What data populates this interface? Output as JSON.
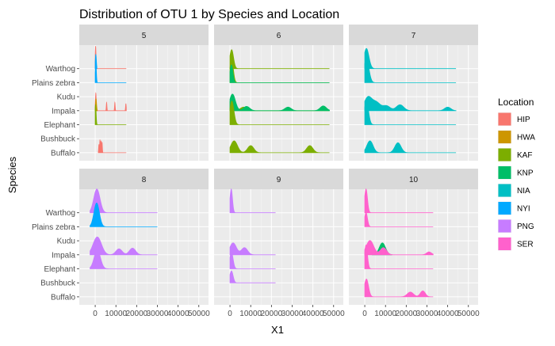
{
  "chart_data": {
    "type": "ridgeline",
    "title": "Distribution of OTU 1 by Species and Location",
    "xlabel": "X1",
    "ylabel": "Species",
    "facet_by": "OTU",
    "facets": [
      "5",
      "6",
      "7",
      "8",
      "9",
      "10"
    ],
    "species": [
      "Buffalo",
      "Bushbuck",
      "Elephant",
      "Impala",
      "Kudu",
      "Plains zebra",
      "Warthog"
    ],
    "x_ticks": [
      0,
      10000,
      20000,
      30000,
      40000,
      50000
    ],
    "x_tick_labels": [
      "0",
      "10000",
      "20000",
      "30000",
      "40000",
      "50000"
    ],
    "xlim": [
      -5000,
      52000
    ],
    "legend": {
      "title": "Location",
      "position": "right",
      "entries": [
        {
          "name": "HIP",
          "color": "#F8766D"
        },
        {
          "name": "HWA",
          "color": "#CD9600"
        },
        {
          "name": "KAF",
          "color": "#7CAE00"
        },
        {
          "name": "KNP",
          "color": "#00BE67"
        },
        {
          "name": "NIA",
          "color": "#00BFC4"
        },
        {
          "name": "NYI",
          "color": "#00A9FF"
        },
        {
          "name": "PNG",
          "color": "#C77CFF"
        },
        {
          "name": "SER",
          "color": "#FF61CC"
        }
      ]
    },
    "panels": [
      {
        "facet": "5",
        "ridges": [
          {
            "species": "Warthog",
            "location": "HIP",
            "range": [
              0,
              15000
            ],
            "peaks": [
              [
                200,
                0.95,
                200
              ]
            ]
          },
          {
            "species": "Warthog",
            "location": "NYI",
            "range": [
              0,
              800
            ],
            "peaks": [
              [
                300,
                0.6,
                250
              ]
            ]
          },
          {
            "species": "Plains zebra",
            "location": "NYI",
            "range": [
              0,
              15000
            ],
            "peaks": [
              [
                300,
                0.85,
                250
              ]
            ]
          },
          {
            "species": "Impala",
            "location": "HIP",
            "range": [
              0,
              15000
            ],
            "peaks": [
              [
                300,
                0.75,
                200
              ],
              [
                5500,
                0.35,
                150
              ],
              [
                9500,
                0.35,
                150
              ],
              [
                14800,
                0.3,
                150
              ]
            ]
          },
          {
            "species": "Impala",
            "location": "HWA",
            "range": [
              0,
              1000
            ],
            "peaks": [
              [
                400,
                0.5,
                250
              ]
            ]
          },
          {
            "species": "Elephant",
            "location": "KAF",
            "range": [
              0,
              15000
            ],
            "peaks": [
              [
                200,
                0.85,
                250
              ]
            ]
          },
          {
            "species": "Buffalo",
            "location": "HIP",
            "range": [
              1500,
              15000
            ],
            "peaks": [
              [
                1800,
                0.35,
                150
              ],
              [
                2300,
                0.55,
                150
              ],
              [
                2800,
                0.5,
                150
              ],
              [
                3300,
                0.45,
                150
              ]
            ]
          }
        ]
      },
      {
        "facet": "6",
        "ridges": [
          {
            "species": "Plains zebra",
            "location": "KAF",
            "range": [
              0,
              48000
            ],
            "peaks": [
              [
                800,
                1.0,
                800
              ]
            ]
          },
          {
            "species": "Warthog",
            "location": "KAF",
            "range": [
              0,
              48000
            ],
            "peaks": [
              [
                800,
                0.8,
                900
              ]
            ]
          },
          {
            "species": "Plains zebra",
            "location": "KNP",
            "range": [
              0,
              48000
            ],
            "peaks": [
              [
                700,
                0.75,
                700
              ]
            ]
          },
          {
            "species": "Impala",
            "location": "KAF",
            "range": [
              0,
              48000
            ],
            "peaks": [
              [
                1000,
                0.55,
                1200
              ],
              [
                6500,
                0.15,
                1500
              ]
            ]
          },
          {
            "species": "Impala",
            "location": "KNP",
            "range": [
              0,
              48000
            ],
            "peaks": [
              [
                1200,
                0.7,
                1400
              ],
              [
                8000,
                0.18,
                1500
              ],
              [
                28000,
                0.15,
                1500
              ],
              [
                45000,
                0.2,
                1500
              ]
            ]
          },
          {
            "species": "Elephant",
            "location": "KAF",
            "range": [
              0,
              48000
            ],
            "peaks": [
              [
                900,
                1.0,
                1000
              ]
            ]
          },
          {
            "species": "Buffalo",
            "location": "KAF",
            "range": [
              0,
              48000
            ],
            "peaks": [
              [
                2000,
                0.5,
                1600
              ],
              [
                10000,
                0.3,
                1500
              ],
              [
                38500,
                0.3,
                1500
              ]
            ]
          }
        ]
      },
      {
        "facet": "7",
        "ridges": [
          {
            "species": "Plains zebra",
            "location": "NIA",
            "range": [
              0,
              44000
            ],
            "peaks": [
              [
                800,
                1.0,
                1200
              ]
            ]
          },
          {
            "species": "Warthog",
            "location": "NIA",
            "range": [
              0,
              44000
            ],
            "peaks": [
              [
                800,
                0.85,
                1200
              ]
            ]
          },
          {
            "species": "Impala",
            "location": "NIA",
            "range": [
              0,
              44000
            ],
            "peaks": [
              [
                1500,
                0.55,
                1800
              ],
              [
                5500,
                0.35,
                2000
              ],
              [
                10500,
                0.2,
                1800
              ],
              [
                17000,
                0.25,
                1800
              ],
              [
                40000,
                0.15,
                1500
              ]
            ]
          },
          {
            "species": "Elephant",
            "location": "NIA",
            "range": [
              0,
              44000
            ],
            "peaks": [
              [
                800,
                1.0,
                1000
              ]
            ]
          },
          {
            "species": "Buffalo",
            "location": "NIA",
            "range": [
              0,
              44000
            ],
            "peaks": [
              [
                2500,
                0.5,
                1500
              ],
              [
                16000,
                0.42,
                1500
              ]
            ]
          }
        ]
      },
      {
        "facet": "8",
        "ridges": [
          {
            "species": "Warthog",
            "location": "PNG",
            "range": [
              -2500,
              30000
            ],
            "peaks": [
              [
                800,
                1.0,
                1500
              ]
            ]
          },
          {
            "species": "Plains zebra",
            "location": "NYI",
            "range": [
              -2500,
              30000
            ],
            "peaks": [
              [
                700,
                1.0,
                1300
              ]
            ]
          },
          {
            "species": "Impala",
            "location": "PNG",
            "range": [
              -2500,
              30000
            ],
            "peaks": [
              [
                1000,
                0.75,
                2000
              ],
              [
                11500,
                0.25,
                1500
              ],
              [
                18000,
                0.28,
                1500
              ]
            ]
          },
          {
            "species": "Elephant",
            "location": "PNG",
            "range": [
              -2500,
              30000
            ],
            "peaks": [
              [
                1000,
                0.8,
                1500
              ]
            ]
          }
        ]
      },
      {
        "facet": "9",
        "ridges": [
          {
            "species": "Warthog",
            "location": "PNG",
            "range": [
              0,
              22000
            ],
            "peaks": [
              [
                600,
                1.0,
                600
              ]
            ]
          },
          {
            "species": "Impala",
            "location": "PNG",
            "range": [
              0,
              22000
            ],
            "peaks": [
              [
                1500,
                0.5,
                1600
              ],
              [
                7000,
                0.3,
                1500
              ]
            ]
          },
          {
            "species": "Elephant",
            "location": "PNG",
            "range": [
              0,
              22000
            ],
            "peaks": [
              [
                700,
                0.7,
                800
              ]
            ]
          },
          {
            "species": "Bushbuck",
            "location": "PNG",
            "range": [
              0,
              22000
            ],
            "peaks": [
              [
                700,
                0.5,
                800
              ]
            ]
          }
        ]
      },
      {
        "facet": "10",
        "ridges": [
          {
            "species": "Warthog",
            "location": "SER",
            "range": [
              0,
              33000
            ],
            "peaks": [
              [
                600,
                1.0,
                700
              ]
            ]
          },
          {
            "species": "Plains zebra",
            "location": "SER",
            "range": [
              0,
              33000
            ],
            "peaks": [
              [
                600,
                0.6,
                700
              ]
            ]
          },
          {
            "species": "Impala",
            "location": "KNP",
            "range": [
              3500,
              13000
            ],
            "peaks": [
              [
                8500,
                0.5,
                1500
              ]
            ]
          },
          {
            "species": "Impala",
            "location": "SER",
            "range": [
              0,
              33000
            ],
            "peaks": [
              [
                2500,
                0.6,
                1800
              ],
              [
                9000,
                0.3,
                1500
              ],
              [
                31000,
                0.12,
                1200
              ]
            ]
          },
          {
            "species": "Elephant",
            "location": "SER",
            "range": [
              0,
              33000
            ],
            "peaks": [
              [
                600,
                1.0,
                700
              ]
            ]
          },
          {
            "species": "Buffalo",
            "location": "SER",
            "range": [
              0,
              33000
            ],
            "peaks": [
              [
                800,
                0.75,
                1000
              ],
              [
                22000,
                0.2,
                1500
              ],
              [
                28000,
                0.25,
                1200
              ]
            ]
          }
        ]
      }
    ]
  }
}
